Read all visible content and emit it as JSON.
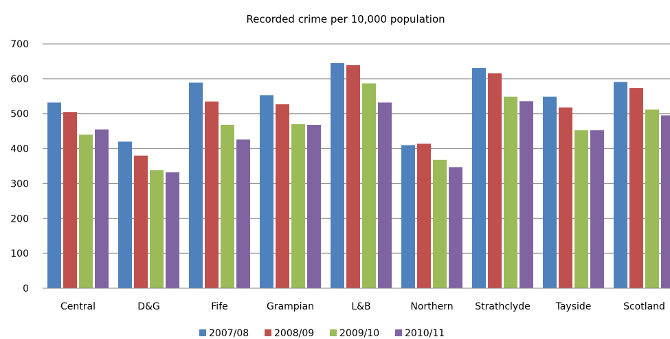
{
  "chart_data": {
    "type": "bar",
    "title": "Recorded crime per 10,000 population",
    "xlabel": "",
    "ylabel": "",
    "ylim": [
      0,
      700
    ],
    "yticks": [
      0,
      100,
      200,
      300,
      400,
      500,
      600,
      700
    ],
    "grid": true,
    "legend_position": "bottom",
    "categories": [
      "Central",
      "D&G",
      "Fife",
      "Grampian",
      "L&B",
      "Northern",
      "Strathclyde",
      "Tayside",
      "Scotland"
    ],
    "series": [
      {
        "name": "2007/08",
        "color": "#4F81BD",
        "values": [
          532,
          420,
          589,
          553,
          645,
          410,
          631,
          549,
          591
        ]
      },
      {
        "name": "2008/09",
        "color": "#C0504D",
        "values": [
          505,
          380,
          535,
          527,
          639,
          414,
          616,
          518,
          574
        ]
      },
      {
        "name": "2009/10",
        "color": "#9BBB59",
        "values": [
          440,
          338,
          468,
          470,
          587,
          368,
          549,
          453,
          512
        ]
      },
      {
        "name": "2010/11",
        "color": "#8064A2",
        "values": [
          455,
          332,
          426,
          468,
          532,
          347,
          536,
          453,
          495
        ]
      }
    ]
  }
}
